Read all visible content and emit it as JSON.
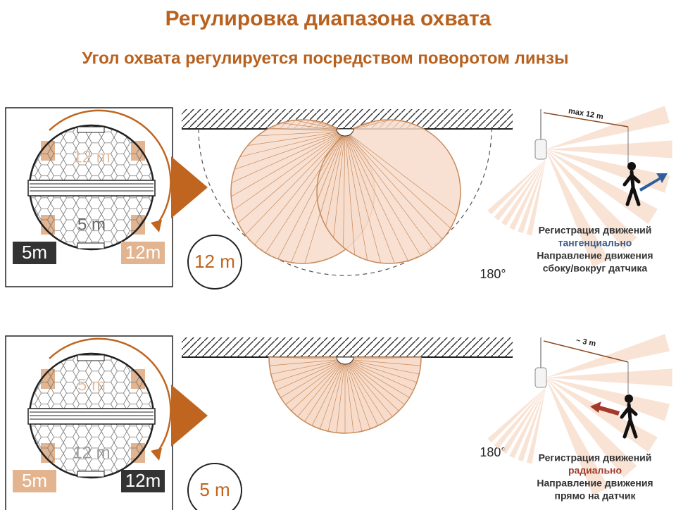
{
  "header": {
    "title": "Регулировка диапазона охвата",
    "subtitle": "Угол охвата регулируется посредством поворотом линзы"
  },
  "panels": [
    {
      "lens_top": "12 m",
      "lens_bottom": "5 m",
      "badge_left": "5m",
      "badge_right": "12m",
      "range": "12 m",
      "angle": "180°",
      "distance": "max 12 m",
      "caption": [
        "Регистрация движений",
        "тангенциально",
        "Направление движения",
        "сбоку/вокруг  датчика"
      ]
    },
    {
      "lens_top": "5 m",
      "lens_bottom": "12 m",
      "badge_left": "5m",
      "badge_right": "12m",
      "range": "5 m",
      "angle": "180°",
      "distance": "~ 3 m",
      "caption": [
        "Регистрация движений",
        "радиально",
        "Направление движения",
        "прямо на датчик"
      ]
    }
  ]
}
